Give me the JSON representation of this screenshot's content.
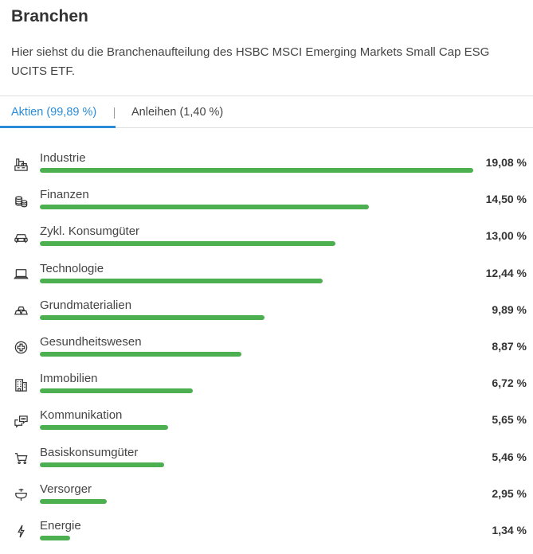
{
  "header": {
    "title": "Branchen",
    "description": "Hier siehst du die Branchenaufteilung des HSBC MSCI Emerging Markets Small Cap ESG UCITS ETF."
  },
  "tabs": [
    {
      "label": "Aktien (99,89 %)",
      "active": true
    },
    {
      "label": "Anleihen (1,40 %)",
      "active": false
    }
  ],
  "accent_color": "#2a8bd8",
  "bar_color": "#4caf50",
  "max_percent": 19.08,
  "sectors": [
    {
      "icon": "factory-icon",
      "label": "Industrie",
      "value": "19,08 %",
      "percent": 19.08
    },
    {
      "icon": "coins-icon",
      "label": "Finanzen",
      "value": "14,50 %",
      "percent": 14.5
    },
    {
      "icon": "car-icon",
      "label": "Zykl. Konsumgüter",
      "value": "13,00 %",
      "percent": 13.0
    },
    {
      "icon": "laptop-icon",
      "label": "Technologie",
      "value": "12,44 %",
      "percent": 12.44
    },
    {
      "icon": "gold-bars-icon",
      "label": "Grundmaterialien",
      "value": "9,89 %",
      "percent": 9.89
    },
    {
      "icon": "medical-cross-icon",
      "label": "Gesundheitswesen",
      "value": "8,87 %",
      "percent": 8.87
    },
    {
      "icon": "building-icon",
      "label": "Immobilien",
      "value": "6,72 %",
      "percent": 6.72
    },
    {
      "icon": "chat-icon",
      "label": "Kommunikation",
      "value": "5,65 %",
      "percent": 5.65
    },
    {
      "icon": "cart-icon",
      "label": "Basiskonsumgüter",
      "value": "5,46 %",
      "percent": 5.46
    },
    {
      "icon": "faucet-icon",
      "label": "Versorger",
      "value": "2,95 %",
      "percent": 2.95
    },
    {
      "icon": "lightning-icon",
      "label": "Energie",
      "value": "1,34 %",
      "percent": 1.34
    }
  ]
}
